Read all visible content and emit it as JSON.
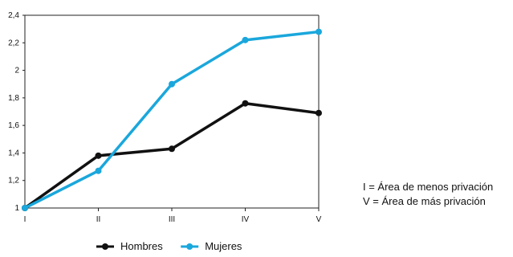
{
  "chart_data": {
    "type": "line",
    "categories": [
      "I",
      "II",
      "III",
      "IV",
      "V"
    ],
    "series": [
      {
        "name": "Hombres",
        "values": [
          1.0,
          1.38,
          1.43,
          1.76,
          1.69
        ],
        "color": "#111111"
      },
      {
        "name": "Mujeres",
        "values": [
          1.0,
          1.27,
          1.9,
          2.22,
          2.28
        ],
        "color": "#1aa7dc"
      }
    ],
    "yticks": [
      "1",
      "1,2",
      "1,4",
      "1,6",
      "1,8",
      "2",
      "2,2",
      "2,4"
    ],
    "ylim": [
      1,
      2.4
    ],
    "title": "",
    "xlabel": "",
    "ylabel": "",
    "grid": false,
    "legend_position": "bottom"
  },
  "notes": {
    "line1": "I = Área de menos privación",
    "line2": "V = Área de más privación"
  }
}
